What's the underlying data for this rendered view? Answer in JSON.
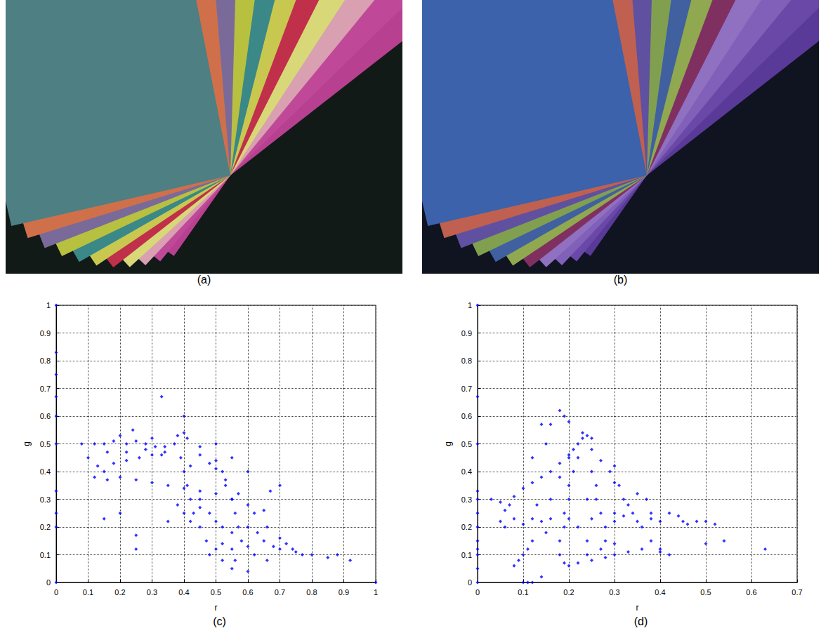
{
  "images": [
    {
      "caption": "(a)"
    },
    {
      "caption": "(b)"
    }
  ],
  "chart_data": [
    {
      "type": "scatter",
      "title": "(c)",
      "x_label": "r",
      "y_label": "g",
      "color": "#0000ff",
      "marker": "diamond",
      "grid": true,
      "xlim": [
        0,
        1
      ],
      "xticks": [
        0,
        0.1,
        0.2,
        0.3,
        0.4,
        0.5,
        0.6,
        0.7,
        0.8,
        0.9,
        1
      ],
      "ylim": [
        0,
        1
      ],
      "yticks": [
        0,
        0.1,
        0.2,
        0.3,
        0.4,
        0.5,
        0.6,
        0.7,
        0.8,
        0.9,
        1
      ],
      "x": [
        0,
        0,
        0,
        0,
        0,
        0,
        0,
        0,
        0,
        0,
        1,
        0.92,
        0.88,
        0.85,
        0.8,
        0.33,
        0.4,
        0.6,
        0.67,
        0.2,
        0.08,
        0.12,
        0.15,
        0.18,
        0.22,
        0.25,
        0.28,
        0.31,
        0.34,
        0.37,
        0.2,
        0.24,
        0.3,
        0.16,
        0.22,
        0.28,
        0.33,
        0.38,
        0.4,
        0.41,
        0.1,
        0.13,
        0.15,
        0.18,
        0.22,
        0.26,
        0.3,
        0.34,
        0.12,
        0.16,
        0.2,
        0.25,
        0.3,
        0.35,
        0.4,
        0.45,
        0.5,
        0.55,
        0.6,
        0.65,
        0.39,
        0.4,
        0.41,
        0.42,
        0.43,
        0.45,
        0.47,
        0.5,
        0.52,
        0.55,
        0.45,
        0.48,
        0.5,
        0.53,
        0.57,
        0.62,
        0.66,
        0.7,
        0.74,
        0.77,
        0.38,
        0.4,
        0.42,
        0.45,
        0.48,
        0.5,
        0.52,
        0.55,
        0.58,
        0.6,
        0.5,
        0.52,
        0.53,
        0.55,
        0.56,
        0.57,
        0.55,
        0.56,
        0.6,
        0.63,
        0.65,
        0.68,
        0.7,
        0.72,
        0.75,
        0.62,
        0.66,
        0.48,
        0.52,
        0.45,
        0.15,
        0.25,
        0.25,
        0.35,
        0.6,
        0.7,
        0.55,
        0.5,
        0.45,
        0.42
      ],
      "values": [
        1,
        0.83,
        0.75,
        0.67,
        0.6,
        0.5,
        0.33,
        0.25,
        0.2,
        0,
        0,
        0.08,
        0.1,
        0.09,
        0.1,
        0.67,
        0.6,
        0.4,
        0.33,
        0.25,
        0.5,
        0.5,
        0.5,
        0.51,
        0.5,
        0.51,
        0.5,
        0.49,
        0.49,
        0.5,
        0.53,
        0.55,
        0.52,
        0.47,
        0.47,
        0.48,
        0.46,
        0.53,
        0.54,
        0.52,
        0.45,
        0.42,
        0.4,
        0.43,
        0.44,
        0.45,
        0.46,
        0.47,
        0.38,
        0.37,
        0.38,
        0.37,
        0.36,
        0.35,
        0.34,
        0.33,
        0.32,
        0.3,
        0.28,
        0.26,
        0.45,
        0.4,
        0.35,
        0.3,
        0.25,
        0.2,
        0.15,
        0.12,
        0.08,
        0.05,
        0.46,
        0.43,
        0.41,
        0.37,
        0.32,
        0.25,
        0.2,
        0.16,
        0.12,
        0.1,
        0.28,
        0.25,
        0.22,
        0.27,
        0.25,
        0.22,
        0.2,
        0.18,
        0.15,
        0.13,
        0.44,
        0.4,
        0.35,
        0.3,
        0.25,
        0.2,
        0.12,
        0.08,
        0.2,
        0.18,
        0.15,
        0.13,
        0.12,
        0.14,
        0.11,
        0.1,
        0.08,
        0.1,
        0.14,
        0.3,
        0.23,
        0.12,
        0.17,
        0.22,
        0.04,
        0.35,
        0.45,
        0.5,
        0.49,
        0.42
      ]
    },
    {
      "type": "scatter",
      "title": "(d)",
      "x_label": "r",
      "y_label": "g",
      "color": "#0000ff",
      "marker": "diamond",
      "grid": true,
      "xlim": [
        0,
        0.7
      ],
      "xticks": [
        0,
        0.1,
        0.2,
        0.3,
        0.4,
        0.5,
        0.6,
        0.7
      ],
      "ylim": [
        0,
        1
      ],
      "yticks": [
        0,
        0.1,
        0.2,
        0.3,
        0.4,
        0.5,
        0.6,
        0.7,
        0.8,
        0.9,
        1
      ],
      "x": [
        0,
        0,
        0,
        0,
        0,
        0,
        0,
        0,
        0,
        0,
        0,
        0,
        0.1,
        0.11,
        0.12,
        0.14,
        0.63,
        0.54,
        0.5,
        0.16,
        0.03,
        0.05,
        0.07,
        0.08,
        0.1,
        0.12,
        0.14,
        0.16,
        0.18,
        0.2,
        0.21,
        0.22,
        0.23,
        0.24,
        0.25,
        0.23,
        0.19,
        0.18,
        0.2,
        0.15,
        0.05,
        0.08,
        0.12,
        0.16,
        0.2,
        0.25,
        0.3,
        0.35,
        0.4,
        0.45,
        0.48,
        0.5,
        0.52,
        0.42,
        0.44,
        0.06,
        0.1,
        0.46,
        0.38,
        0.32,
        0.22,
        0.21,
        0.2,
        0.2,
        0.19,
        0.19,
        0.18,
        0.18,
        0.19,
        0.2,
        0.25,
        0.27,
        0.29,
        0.3,
        0.32,
        0.34,
        0.36,
        0.38,
        0.4,
        0.42,
        0.2,
        0.18,
        0.16,
        0.14,
        0.12,
        0.1,
        0.08,
        0.15,
        0.11,
        0.09,
        0.22,
        0.25,
        0.28,
        0.3,
        0.33,
        0.36,
        0.4,
        0.27,
        0.3,
        0.24,
        0.25,
        0.26,
        0.26,
        0.27,
        0.28,
        0.28,
        0.3,
        0.31,
        0.33,
        0.35,
        0.37,
        0.38,
        0.3,
        0.24,
        0.22,
        0.24,
        0.13,
        0.06,
        0.12,
        0.14
      ],
      "values": [
        1,
        0.67,
        0.5,
        0.33,
        0.3,
        0.25,
        0.2,
        0.15,
        0.12,
        0.1,
        0.05,
        0,
        0,
        0,
        0,
        0.02,
        0.12,
        0.15,
        0.14,
        0.57,
        0.3,
        0.29,
        0.28,
        0.31,
        0.34,
        0.36,
        0.38,
        0.4,
        0.43,
        0.46,
        0.48,
        0.5,
        0.52,
        0.53,
        0.52,
        0.54,
        0.6,
        0.62,
        0.58,
        0.5,
        0.22,
        0.23,
        0.23,
        0.23,
        0.23,
        0.23,
        0.22,
        0.22,
        0.22,
        0.22,
        0.22,
        0.22,
        0.21,
        0.25,
        0.24,
        0.2,
        0.21,
        0.21,
        0.23,
        0.24,
        0.45,
        0.4,
        0.35,
        0.3,
        0.25,
        0.2,
        0.15,
        0.1,
        0.07,
        0.06,
        0.48,
        0.44,
        0.4,
        0.36,
        0.3,
        0.25,
        0.2,
        0.15,
        0.12,
        0.1,
        0.45,
        0.38,
        0.3,
        0.22,
        0.15,
        0.1,
        0.06,
        0.18,
        0.12,
        0.08,
        0.07,
        0.08,
        0.09,
        0.1,
        0.11,
        0.12,
        0.11,
        0.12,
        0.14,
        0.1,
        0.4,
        0.35,
        0.3,
        0.25,
        0.2,
        0.15,
        0.42,
        0.35,
        0.28,
        0.32,
        0.3,
        0.25,
        0.25,
        0.3,
        0.2,
        0.15,
        0.28,
        0.26,
        0.45,
        0.57
      ]
    }
  ]
}
